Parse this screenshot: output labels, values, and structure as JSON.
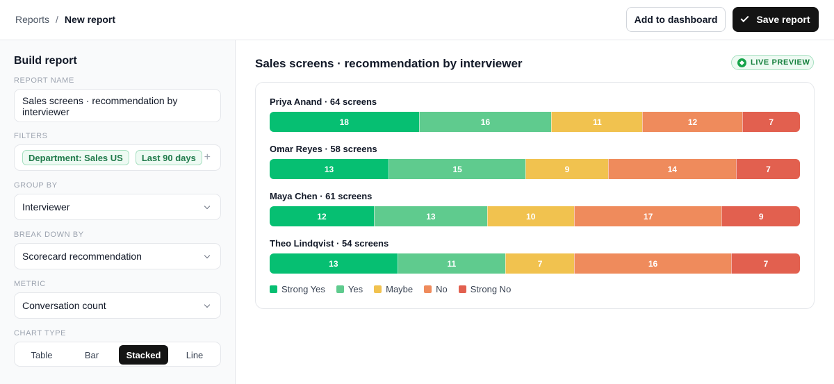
{
  "header": {
    "breadcrumb_root": "Reports",
    "breadcrumb_sep": "/",
    "breadcrumb_current": "New report",
    "add_to_dashboard": "Add to dashboard",
    "save_report": "Save report"
  },
  "sidebar": {
    "title": "Build report",
    "report_name_label": "REPORT NAME",
    "report_name_value": "Sales screens · recommendation by interviewer",
    "filters_label": "FILTERS",
    "filters": [
      "Department: Sales US",
      "Last 90 days"
    ],
    "add_filter": "+",
    "group_by_label": "GROUP BY",
    "group_by_value": "Interviewer",
    "break_down_label": "BREAK DOWN BY",
    "break_down_value": "Scorecard recommendation",
    "metric_label": "METRIC",
    "metric_value": "Conversation count",
    "chart_type_label": "CHART TYPE",
    "chart_types": [
      "Table",
      "Bar",
      "Stacked",
      "Line"
    ],
    "chart_type_selected": "Stacked"
  },
  "main": {
    "title": "Sales screens · recommendation by interviewer",
    "live_badge": "LIVE PREVIEW"
  },
  "colors": {
    "accent_green": "#16a34a",
    "dark_button": "#141414"
  },
  "chart_data": {
    "type": "bar",
    "stacked": true,
    "orientation": "horizontal",
    "categories": [
      "Priya Anand · 64 screens",
      "Omar Reyes · 58 screens",
      "Maya Chen · 61 screens",
      "Theo Lindqvist · 54 screens"
    ],
    "series": [
      {
        "name": "Strong Yes",
        "color": "#06bf72",
        "values": [
          18,
          13,
          12,
          13
        ]
      },
      {
        "name": "Yes",
        "color": "#5fcb8e",
        "values": [
          16,
          15,
          13,
          11
        ]
      },
      {
        "name": "Maybe",
        "color": "#f1c24f",
        "values": [
          11,
          9,
          10,
          7
        ]
      },
      {
        "name": "No",
        "color": "#ef8b5c",
        "values": [
          12,
          14,
          17,
          16
        ]
      },
      {
        "name": "Strong No",
        "color": "#e2604f",
        "values": [
          7,
          7,
          9,
          7
        ]
      }
    ],
    "legend": "bottom-left"
  }
}
